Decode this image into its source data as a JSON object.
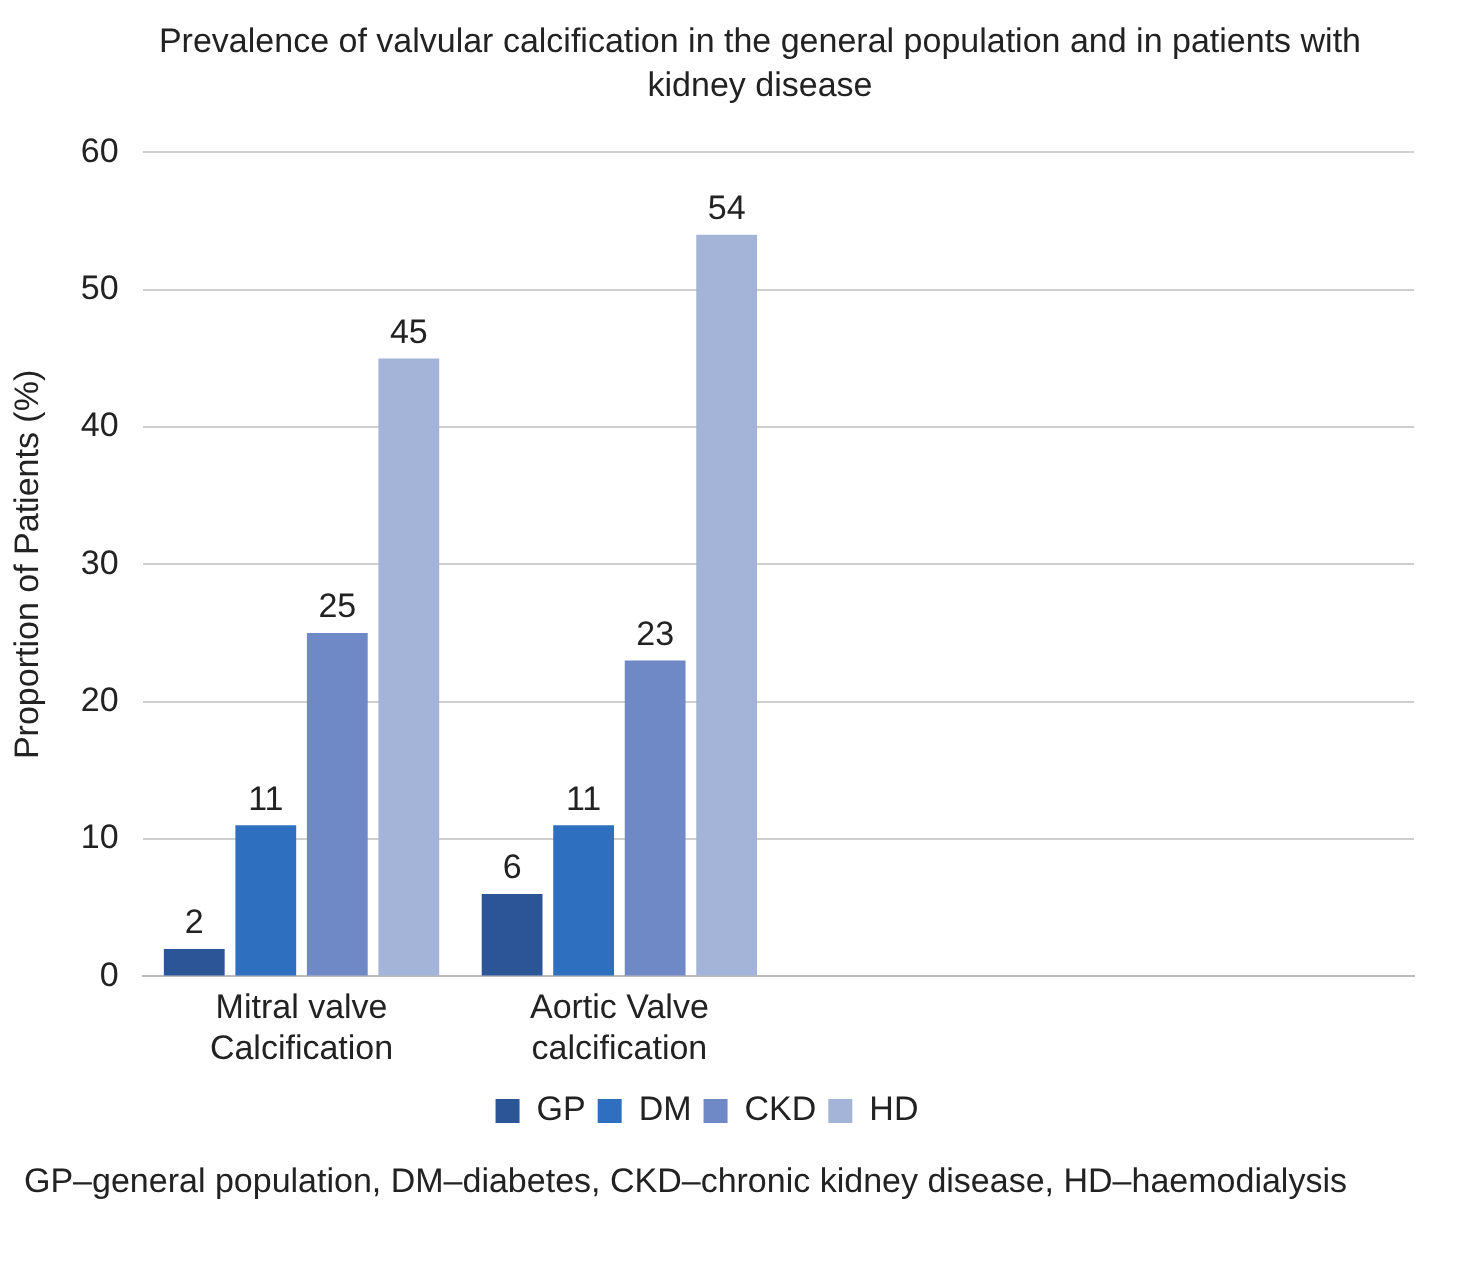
{
  "chart_data": {
    "type": "bar",
    "title": "Prevalence of valvular calcification in the general population and in patients with kidney disease",
    "ylabel": "Proportion of Patients (%)",
    "categories": [
      "Mitral valve Calcification",
      "Aortic Valve calcification",
      null,
      null
    ],
    "series": [
      {
        "name": "GP",
        "color": "#2b5597",
        "values": [
          2,
          6,
          null,
          null
        ]
      },
      {
        "name": "DM",
        "color": "#2f6fbf",
        "values": [
          11,
          11,
          null,
          null
        ]
      },
      {
        "name": "CKD",
        "color": "#6f88c6",
        "values": [
          25,
          23,
          null,
          null
        ]
      },
      {
        "name": "HD",
        "color": "#a3b4d8",
        "values": [
          45,
          54,
          null,
          null
        ]
      }
    ],
    "ylim": [
      0,
      60
    ],
    "yticks": [
      0,
      10,
      20,
      30,
      40,
      50,
      60
    ],
    "grid": "y",
    "legend": "bottom",
    "data_labels": true,
    "annotations": [
      "GP–general population, DM–diabetes, CKD–chronic kidney disease, HD–haemodialysis"
    ]
  }
}
